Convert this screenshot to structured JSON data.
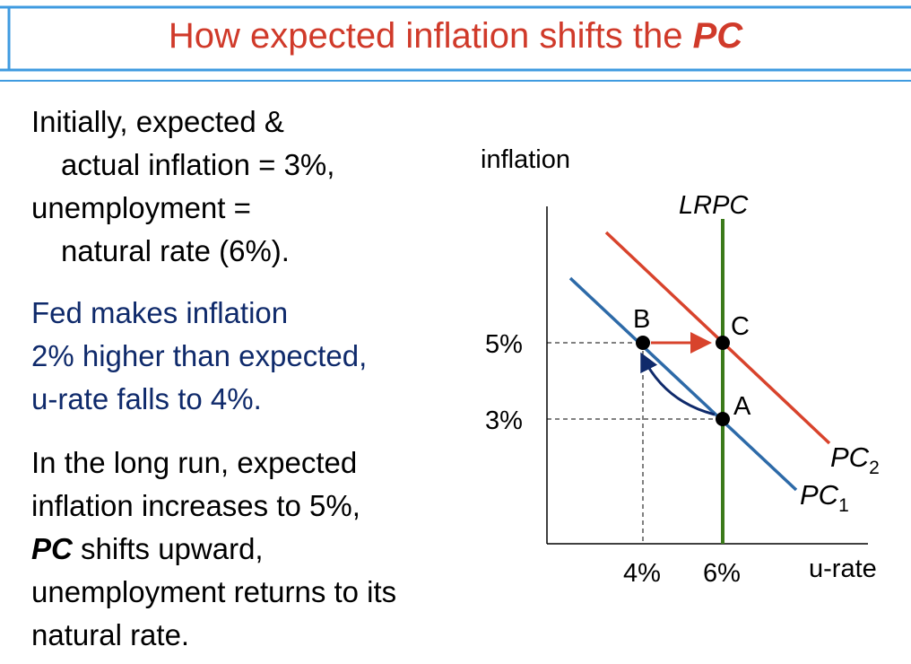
{
  "title": {
    "prefix": "How expected inflation shifts the ",
    "emphasis": "PC"
  },
  "text": {
    "p1_l1": "Initially, expected &",
    "p1_l2": "actual inflation = 3%,",
    "p1_l3": "unemployment =",
    "p1_l4": "natural rate (6%).",
    "p2_l1": "Fed makes inflation",
    "p2_l2": "2% higher than expected,",
    "p2_l3": "u-rate falls to 4%.",
    "p3_l1": "In the long run, expected",
    "p3_l2": "inflation increases to 5%,",
    "p3_l3_em": "PC",
    "p3_l3_rest": " shifts upward,",
    "p3_l4": "unemployment returns to its",
    "p3_l5": "natural rate."
  },
  "diagram": {
    "y_axis_label": "inflation",
    "x_axis_label": "u-rate",
    "y_ticks": [
      "5%",
      "3%"
    ],
    "x_ticks": [
      "4%",
      "6%"
    ],
    "lrpc_label": "LRPC",
    "pc1_label": "PC",
    "pc1_sub": "1",
    "pc2_label": "PC",
    "pc2_sub": "2",
    "points": {
      "a": "A",
      "b": "B",
      "c": "C"
    },
    "colors": {
      "pc1": "#2d6aa8",
      "pc2": "#d8432c",
      "lrpc": "#3b7a1a",
      "arrow_curve": "#0f2a6b",
      "arrow_shift": "#d8432c"
    }
  }
}
